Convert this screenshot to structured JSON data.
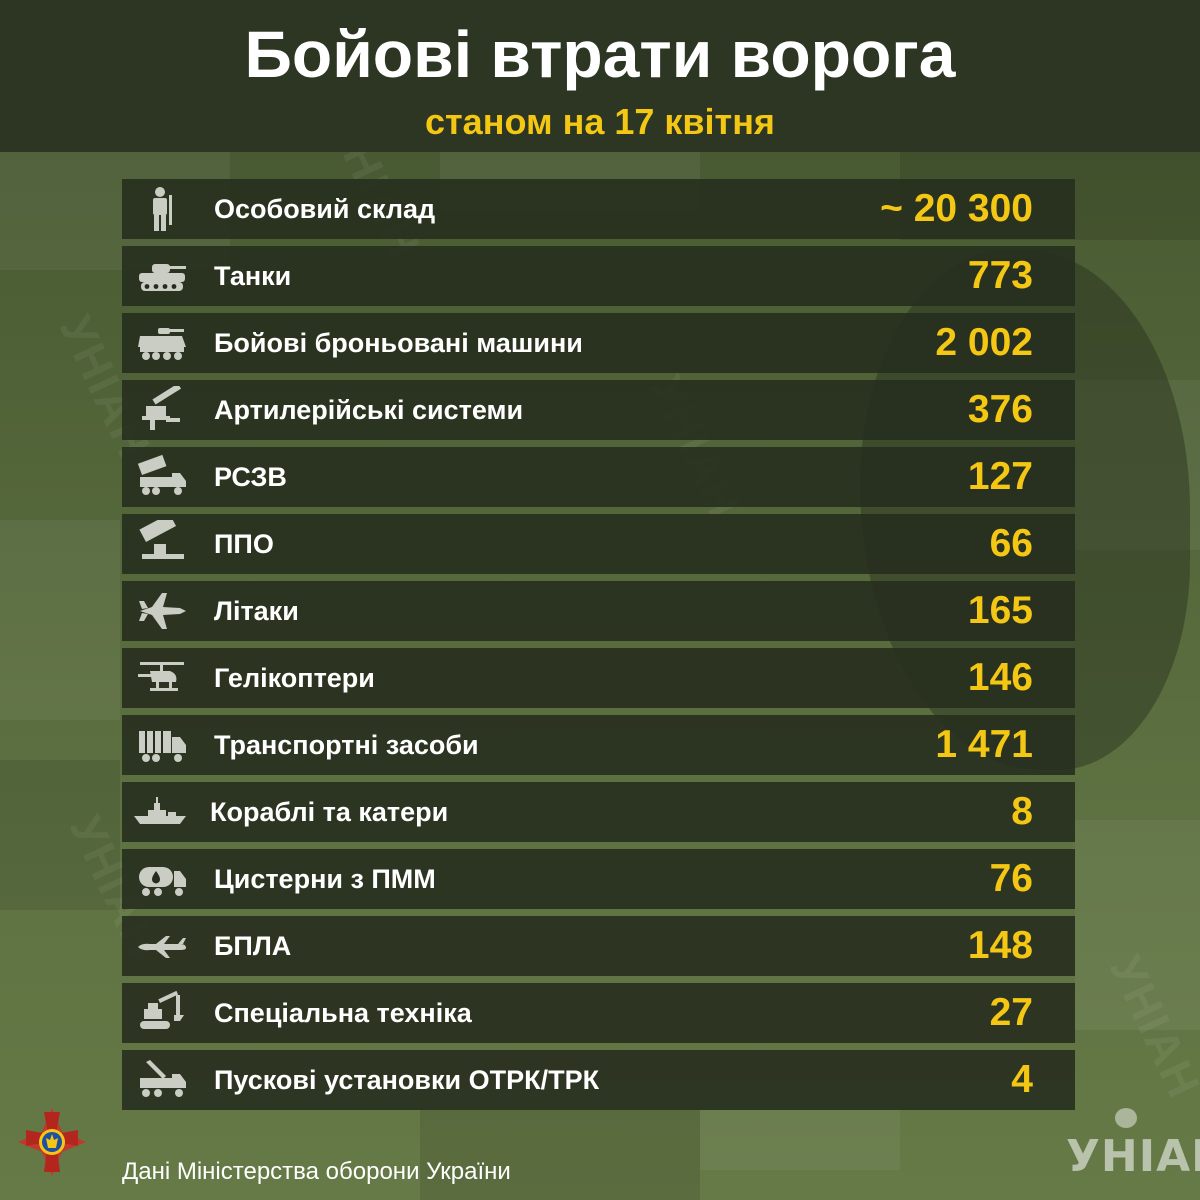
{
  "header": {
    "title": "Бойові втрати ворога",
    "subtitle": "станом на 17 квітня"
  },
  "items": [
    {
      "icon": "soldier-icon",
      "label": "Особовий склад",
      "value": "~ 20 300"
    },
    {
      "icon": "tank-icon",
      "label": "Танки",
      "value": "773"
    },
    {
      "icon": "armored-vehicle-icon",
      "label": "Бойові броньовані машини",
      "value": "2 002"
    },
    {
      "icon": "artillery-icon",
      "label": "Артилерійські системи",
      "value": "376"
    },
    {
      "icon": "rocket-launcher-icon",
      "label": "РСЗВ",
      "value": "127"
    },
    {
      "icon": "air-defense-icon",
      "label": "ППО",
      "value": "66"
    },
    {
      "icon": "jet-icon",
      "label": "Літаки",
      "value": "165"
    },
    {
      "icon": "helicopter-icon",
      "label": "Гелікоптери",
      "value": "146"
    },
    {
      "icon": "truck-icon",
      "label": "Транспортні засоби",
      "value": "1 471"
    },
    {
      "icon": "ship-icon",
      "label": "Кораблі та катери",
      "value": "8"
    },
    {
      "icon": "fuel-tanker-icon",
      "label": "Цистерни з ПММ",
      "value": "76"
    },
    {
      "icon": "drone-icon",
      "label": "БПЛА",
      "value": "148"
    },
    {
      "icon": "excavator-icon",
      "label": "Спеціальна техніка",
      "value": "27"
    },
    {
      "icon": "missile-launcher-icon",
      "label": "Пускові установки ОТРК/ТРК",
      "value": "4"
    }
  ],
  "footer": {
    "source": "Дані Міністерства оборони України",
    "logo_text": "УНІАН"
  },
  "colors": {
    "accent": "#f3c713",
    "header_bg": "#2c3623",
    "row_bg": "#252c1e",
    "icon": "#c9cdc4"
  }
}
